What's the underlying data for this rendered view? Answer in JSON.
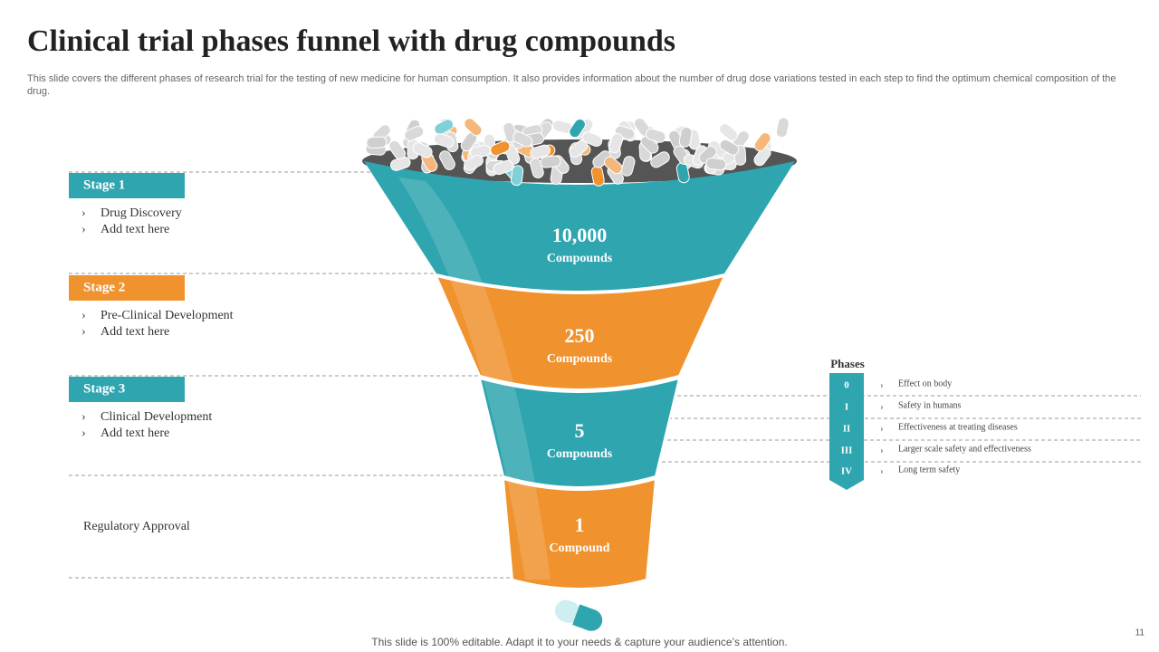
{
  "title": "Clinical trial phases funnel with drug compounds",
  "subtitle": "This slide covers the different phases of research trial for the testing of new medicine for human consumption. It also provides information about the number of drug dose variations tested in each step to find the optimum chemical composition of the drug.",
  "stages": [
    {
      "label": "Stage 1",
      "items": [
        "Drug Discovery",
        "Add text here"
      ]
    },
    {
      "label": "Stage 2",
      "items": [
        "Pre-Clinical Development",
        "Add text here"
      ]
    },
    {
      "label": "Stage 3",
      "items": [
        "Clinical  Development",
        "Add text here"
      ]
    },
    {
      "label": "Regulatory Approval"
    }
  ],
  "funnel": [
    {
      "value": "10,000",
      "unit": "Compounds"
    },
    {
      "value": "250",
      "unit": "Compounds"
    },
    {
      "value": "5",
      "unit": "Compounds"
    },
    {
      "value": "1",
      "unit": "Compound"
    }
  ],
  "phases": {
    "title": "Phases",
    "rows": [
      {
        "numeral": "0",
        "text": "Effect on body"
      },
      {
        "numeral": "I",
        "text": "Safety in humans"
      },
      {
        "numeral": "II",
        "text": "Effectiveness at treating diseases"
      },
      {
        "numeral": "III",
        "text": "Larger scale safety and effectiveness"
      },
      {
        "numeral": "IV",
        "text": "Long term safety"
      }
    ]
  },
  "footer": "This slide is 100% editable. Adapt it to your needs & capture your audience’s attention.",
  "page_number": "11"
}
